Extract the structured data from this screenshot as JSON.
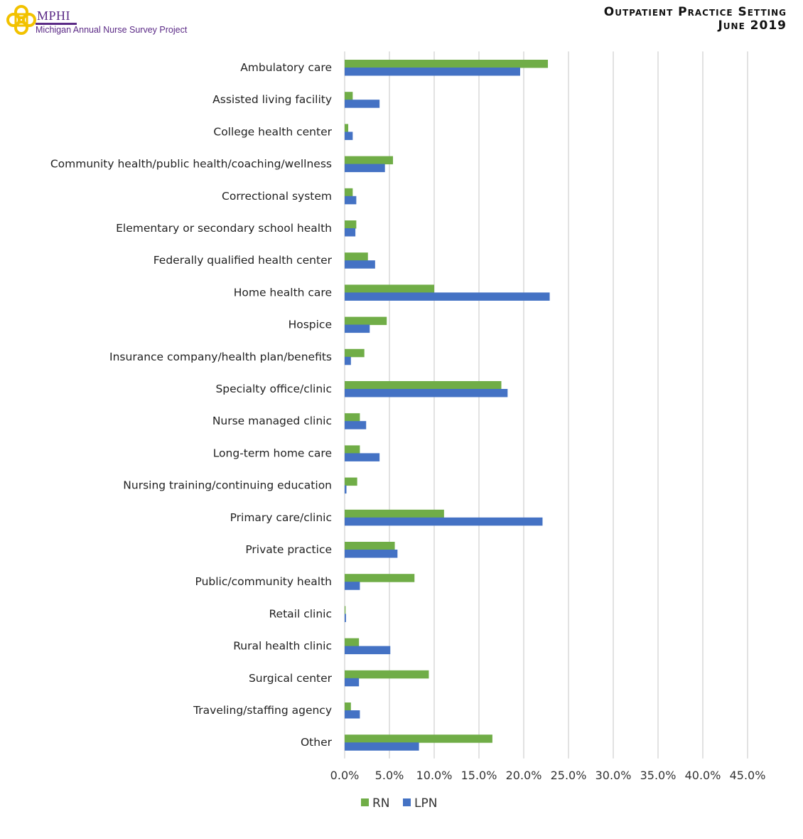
{
  "header": {
    "logo_abbr": "MPHI",
    "logo_subtitle": "Michigan Annual Nurse Survey Project",
    "title_line1": "Outpatient Practice Setting",
    "title_line2": "June 2019"
  },
  "colors": {
    "RN": "#70AD47",
    "LPN": "#4472C4",
    "grid": "#D9D9D9",
    "logo_gold": "#F2C200",
    "logo_purple": "#5B2A86"
  },
  "chart_data": {
    "type": "bar",
    "orientation": "horizontal",
    "categories": [
      "Ambulatory care",
      "Assisted living facility",
      "College health center",
      "Community health/public health/coaching/wellness",
      "Correctional system",
      "Elementary or secondary school health",
      "Federally qualified health center",
      "Home health care",
      "Hospice",
      "Insurance company/health plan/benefits",
      "Specialty office/clinic",
      "Nurse managed clinic",
      "Long-term home care",
      "Nursing training/continuing education",
      "Primary care/clinic",
      "Private practice",
      "Public/community health",
      "Retail clinic",
      "Rural health clinic",
      "Surgical center",
      "Traveling/staffing agency",
      "Other"
    ],
    "series": [
      {
        "name": "RN",
        "values": [
          22.7,
          0.9,
          0.4,
          5.4,
          0.9,
          1.3,
          2.6,
          10.0,
          4.7,
          2.2,
          17.5,
          1.7,
          1.7,
          1.4,
          11.1,
          5.6,
          7.8,
          0.1,
          1.6,
          9.4,
          0.7,
          16.5
        ]
      },
      {
        "name": "LPN",
        "values": [
          19.6,
          3.9,
          0.9,
          4.5,
          1.3,
          1.2,
          3.4,
          22.9,
          2.8,
          0.7,
          18.2,
          2.4,
          3.9,
          0.2,
          22.1,
          5.9,
          1.7,
          0.15,
          5.1,
          1.6,
          1.7,
          8.3
        ]
      }
    ],
    "xlim": [
      0,
      45
    ],
    "x_ticks": [
      "0.0%",
      "5.0%",
      "10.0%",
      "15.0%",
      "20.0%",
      "25.0%",
      "30.0%",
      "35.0%",
      "40.0%",
      "45.0%"
    ],
    "grid": true,
    "legend_position": "bottom"
  }
}
